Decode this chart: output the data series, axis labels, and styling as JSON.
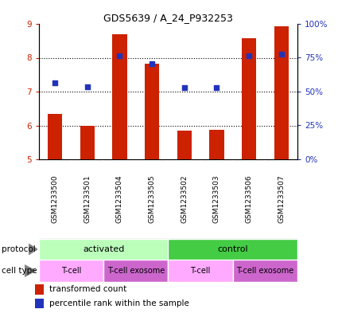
{
  "title": "GDS5639 / A_24_P932253",
  "samples": [
    "GSM1233500",
    "GSM1233501",
    "GSM1233504",
    "GSM1233505",
    "GSM1233502",
    "GSM1233503",
    "GSM1233506",
    "GSM1233507"
  ],
  "bar_values": [
    6.35,
    5.98,
    8.7,
    7.82,
    5.85,
    5.87,
    8.58,
    8.92
  ],
  "percentile_values": [
    7.25,
    7.15,
    8.05,
    7.82,
    7.12,
    7.12,
    8.05,
    8.1
  ],
  "ylim_left": [
    5,
    9
  ],
  "ylim_right": [
    0,
    100
  ],
  "yticks_left": [
    5,
    6,
    7,
    8,
    9
  ],
  "yticks_right": [
    0,
    25,
    50,
    75,
    100
  ],
  "ytick_labels_right": [
    "0%",
    "25%",
    "50%",
    "75%",
    "100%"
  ],
  "bar_color": "#cc2200",
  "blue_color": "#2233bb",
  "protocol_groups": [
    {
      "label": "activated",
      "span": [
        0,
        3
      ],
      "color": "#bbffbb"
    },
    {
      "label": "control",
      "span": [
        4,
        7
      ],
      "color": "#44cc44"
    }
  ],
  "cell_type_groups": [
    {
      "label": "T-cell",
      "span": [
        0,
        1
      ],
      "color": "#ffaaff"
    },
    {
      "label": "T-cell exosome",
      "span": [
        2,
        3
      ],
      "color": "#cc66cc"
    },
    {
      "label": "T-cell",
      "span": [
        4,
        5
      ],
      "color": "#ffaaff"
    },
    {
      "label": "T-cell exosome",
      "span": [
        6,
        7
      ],
      "color": "#cc66cc"
    }
  ],
  "legend_red_label": "transformed count",
  "legend_blue_label": "percentile rank within the sample",
  "bar_width": 0.45,
  "background_color": "#ffffff",
  "xticklabel_area_color": "#cccccc",
  "xlabel_divider_color": "#aaaaaa"
}
